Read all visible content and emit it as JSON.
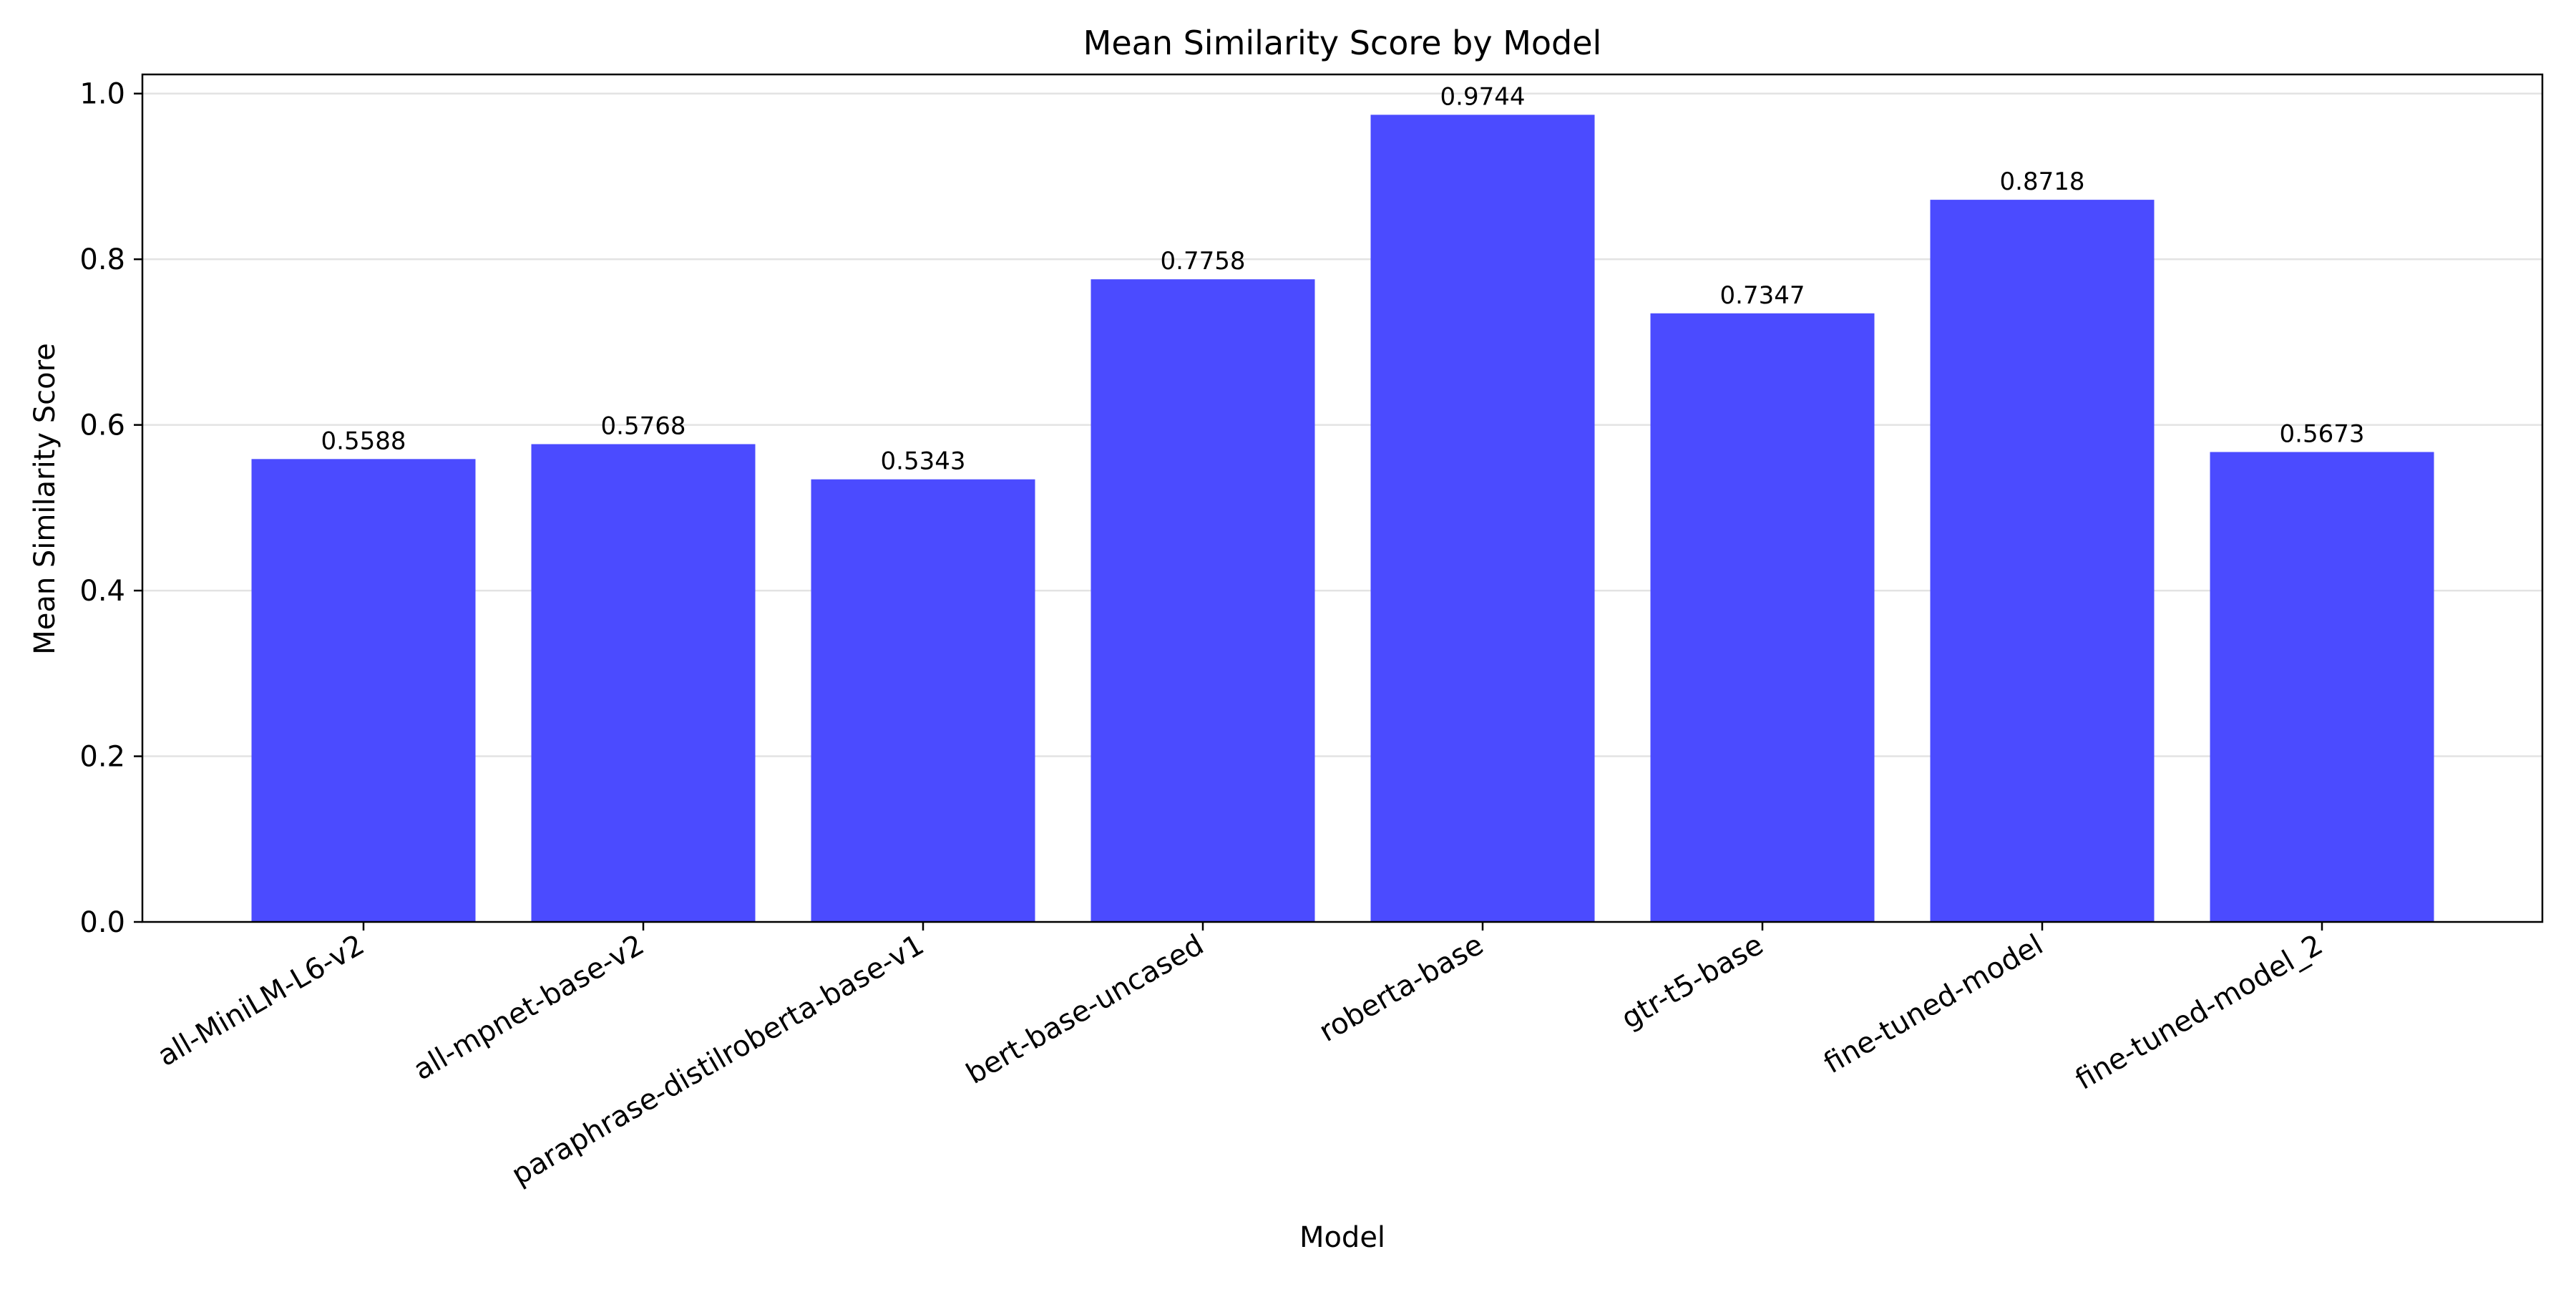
{
  "chart_data": {
    "type": "bar",
    "title": "Mean Similarity Score by Model",
    "xlabel": "Model",
    "ylabel": "Mean Similarity Score",
    "categories": [
      "all-MiniLM-L6-v2",
      "all-mpnet-base-v2",
      "paraphrase-distilroberta-base-v1",
      "bert-base-uncased",
      "roberta-base",
      "gtr-t5-base",
      "fine-tuned-model",
      "fine-tuned-model_2"
    ],
    "values": [
      0.5588,
      0.5768,
      0.5343,
      0.7758,
      0.9744,
      0.7347,
      0.8718,
      0.5673
    ],
    "value_labels": [
      "0.5588",
      "0.5768",
      "0.5343",
      "0.7758",
      "0.9744",
      "0.7347",
      "0.8718",
      "0.5673"
    ],
    "ylim": [
      0,
      1.0231
    ],
    "yticks": [
      0.0,
      0.2,
      0.4,
      0.6,
      0.8,
      1.0
    ],
    "ytick_labels": [
      "0.0",
      "0.2",
      "0.4",
      "0.6",
      "0.8",
      "1.0"
    ],
    "grid": "y",
    "bar_color": "#4b4bff",
    "grid_color": "#e3e3e3"
  }
}
